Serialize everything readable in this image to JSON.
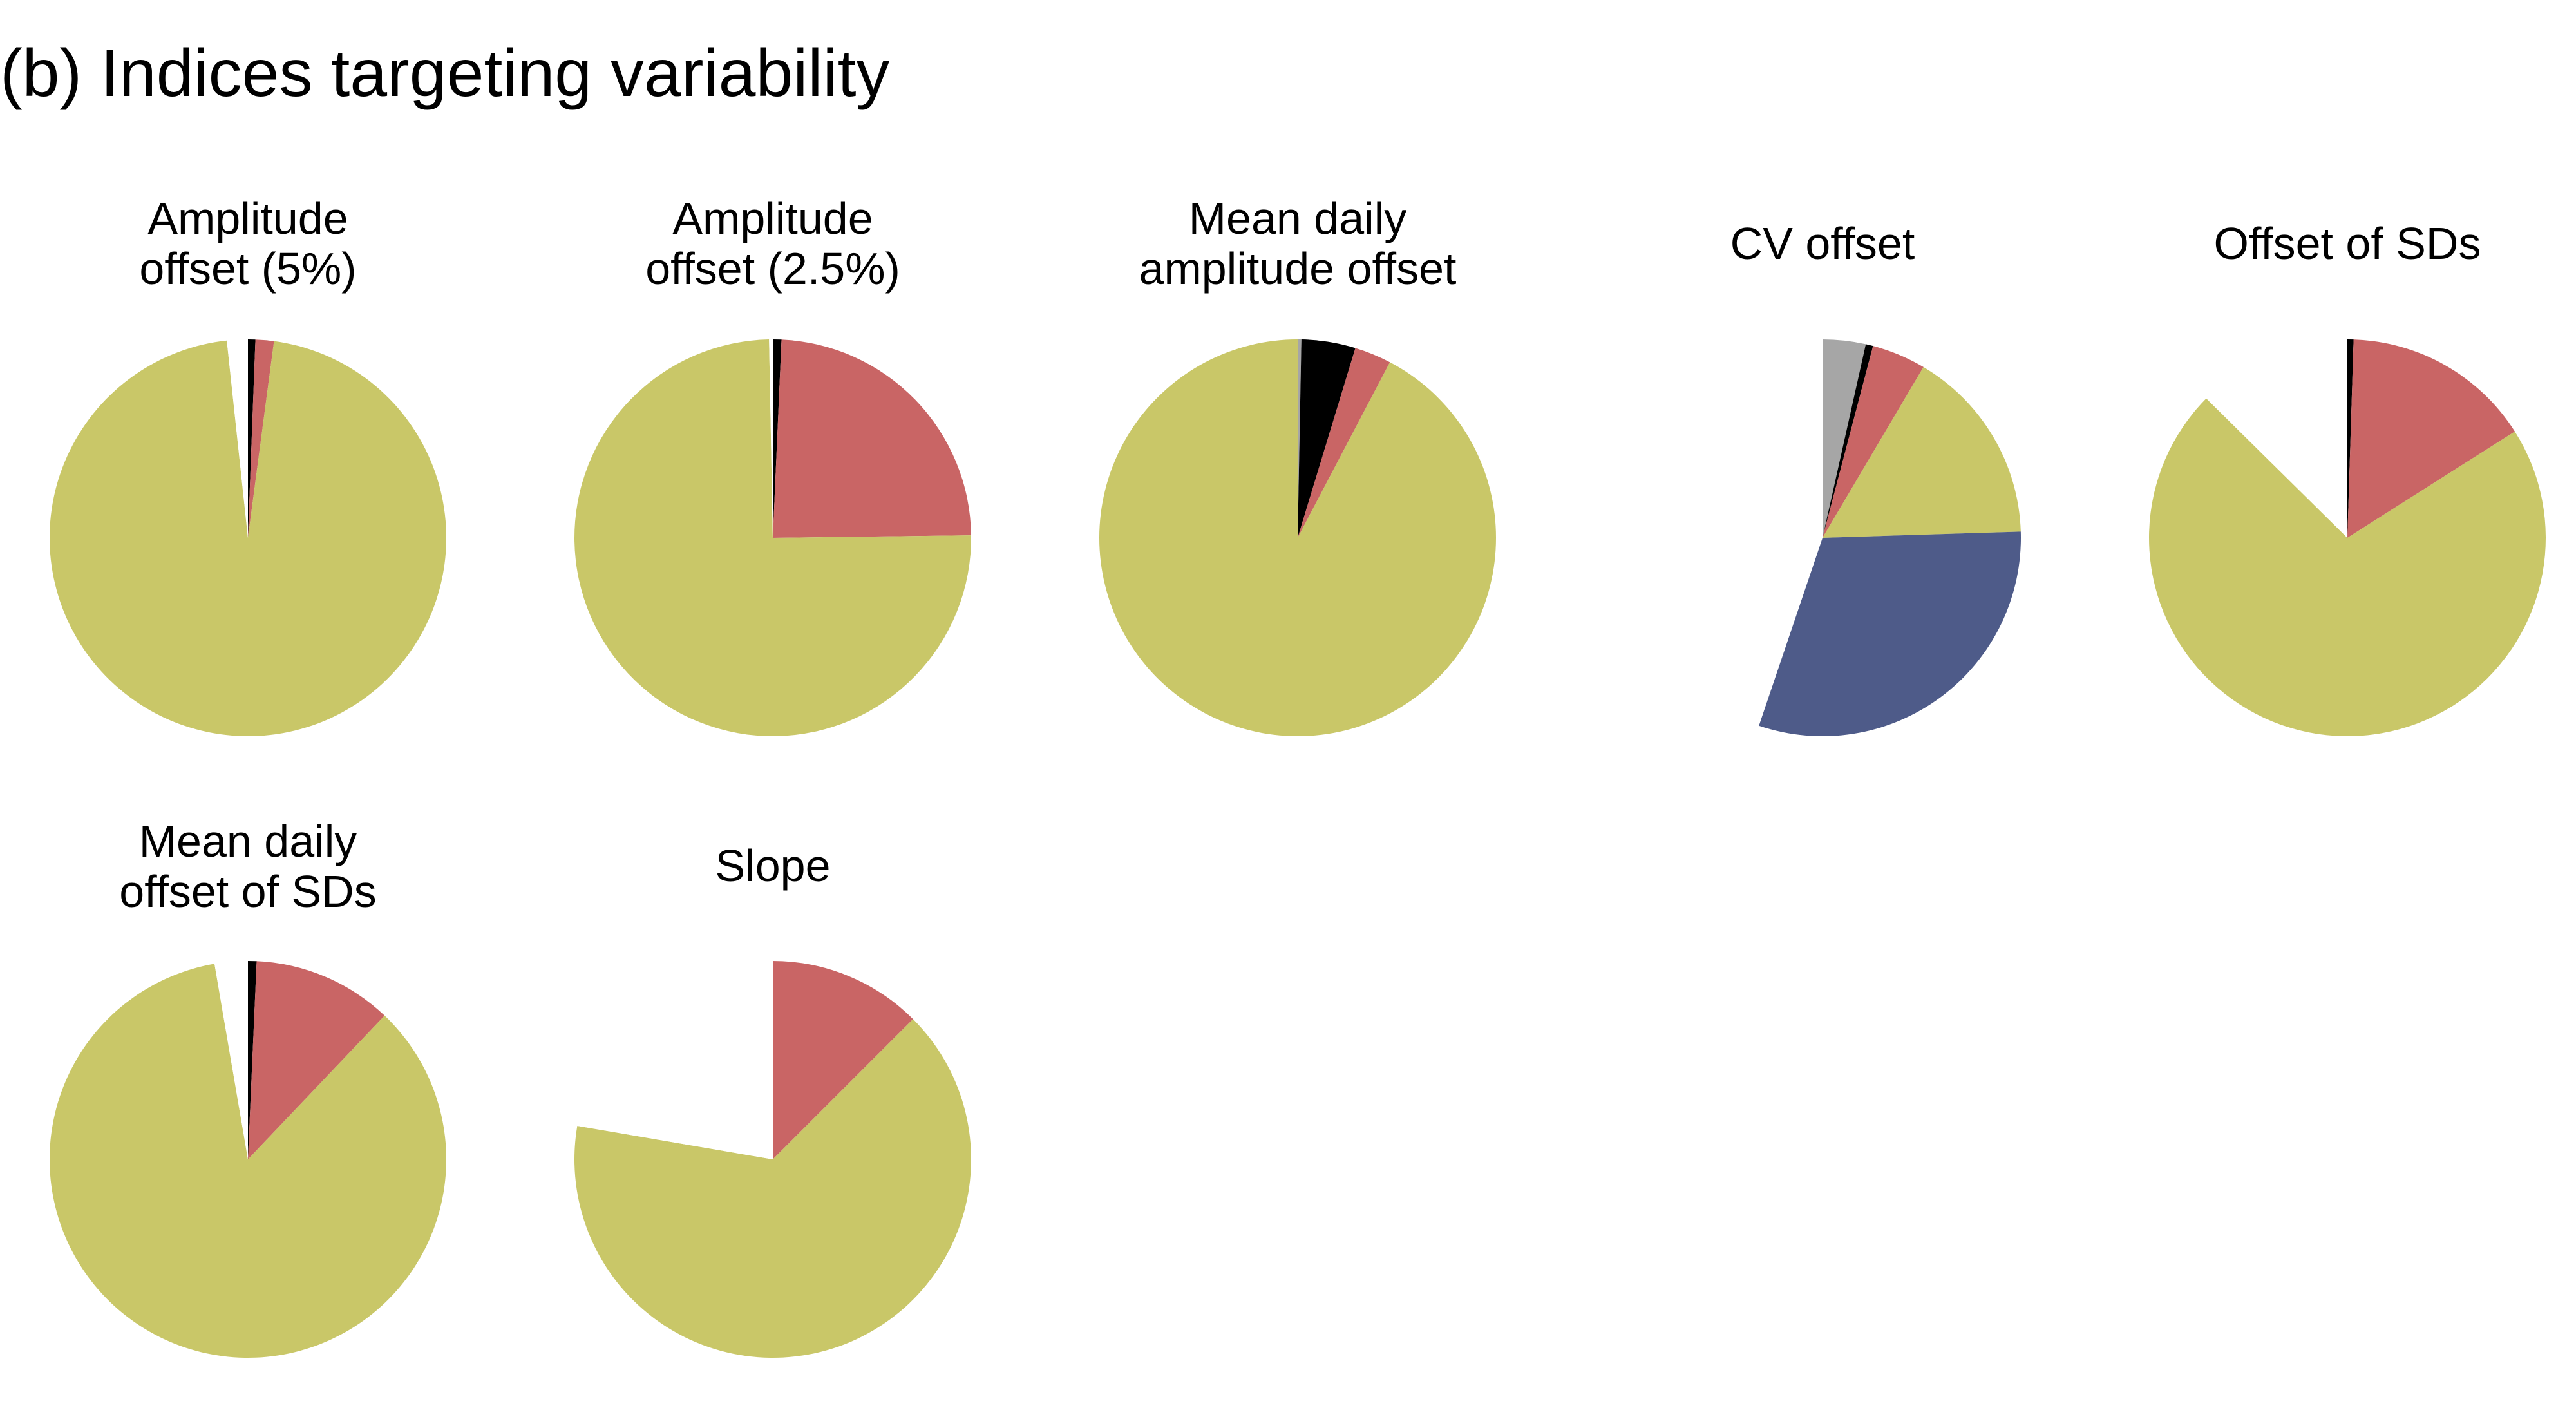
{
  "figure_title": "(b) Indices targeting variability",
  "colors": {
    "white": "#ffffff",
    "black": "#000000",
    "gray": "#a6a6a6",
    "red": "#c96565",
    "yellow": "#c9c768",
    "blue": "#4e5b89"
  },
  "chart_data": [
    {
      "type": "pie",
      "title": "Amplitude\noffset (5%)",
      "slices": [
        {
          "color": "black",
          "value": 0.6
        },
        {
          "color": "red",
          "value": 1.5
        },
        {
          "color": "yellow",
          "value": 96.2
        },
        {
          "color": "white",
          "value": 1.7
        }
      ]
    },
    {
      "type": "pie",
      "title": "Amplitude\noffset (2.5%)",
      "slices": [
        {
          "color": "black",
          "value": 0.7
        },
        {
          "color": "red",
          "value": 24.1
        },
        {
          "color": "yellow",
          "value": 74.9
        },
        {
          "color": "white",
          "value": 0.3
        }
      ]
    },
    {
      "type": "pie",
      "title": "Mean daily\namplitude offset",
      "slices": [
        {
          "color": "gray",
          "value": 0.3
        },
        {
          "color": "black",
          "value": 4.4
        },
        {
          "color": "red",
          "value": 3.0
        },
        {
          "color": "yellow",
          "value": 92.3
        }
      ]
    },
    {
      "type": "pie",
      "title": "CV offset",
      "slices": [
        {
          "color": "gray",
          "value": 3.5
        },
        {
          "color": "black",
          "value": 0.6
        },
        {
          "color": "red",
          "value": 4.4
        },
        {
          "color": "yellow",
          "value": 16.0
        },
        {
          "color": "blue",
          "value": 30.7
        },
        {
          "color": "white",
          "value": 44.8
        }
      ]
    },
    {
      "type": "pie",
      "title": "Offset of SDs",
      "slices": [
        {
          "color": "black",
          "value": 0.5
        },
        {
          "color": "red",
          "value": 15.5
        },
        {
          "color": "yellow",
          "value": 71.4
        },
        {
          "color": "white",
          "value": 12.6
        }
      ]
    },
    {
      "type": "pie",
      "title": "Mean daily\noffset of SDs",
      "slices": [
        {
          "color": "black",
          "value": 0.7
        },
        {
          "color": "red",
          "value": 11.4
        },
        {
          "color": "yellow",
          "value": 85.2
        },
        {
          "color": "white",
          "value": 2.7
        }
      ]
    },
    {
      "type": "pie",
      "title": "Slope",
      "slices": [
        {
          "color": "red",
          "value": 12.5
        },
        {
          "color": "yellow",
          "value": 65.2
        },
        {
          "color": "white",
          "value": 22.3
        }
      ]
    }
  ]
}
